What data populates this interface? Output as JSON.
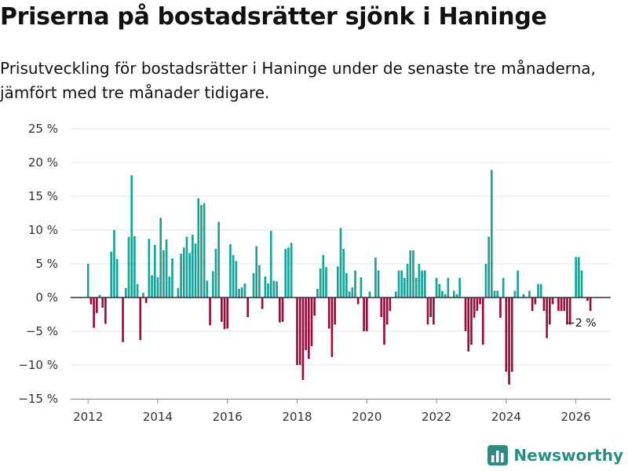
{
  "header": {
    "title": "Priserna på bostadsrätter sjönk i Haninge",
    "subtitle": "Prisutveckling för bostadsrätter i Haninge under de senaste tre månaderna, jämfört med tre månader tidigare."
  },
  "brand": {
    "name": "Newsworthy",
    "icon": "bar-chart-icon"
  },
  "colors": {
    "positive": "#17a398",
    "negative": "#9a0a3c",
    "grid": "#e3e3e3",
    "zero_line": "#333333",
    "brand": "#2a8c82"
  },
  "chart_data": {
    "type": "bar",
    "title": "Priserna på bostadsrätter sjönk i Haninge",
    "xlabel": "",
    "ylabel": "",
    "x_unit": "year",
    "xlim": [
      2011.5,
      2027.0
    ],
    "ylim": [
      -15,
      25
    ],
    "y_ticks": [
      -15,
      -10,
      -5,
      0,
      5,
      10,
      15,
      20,
      25
    ],
    "y_tick_labels": [
      "−15 %",
      "−10 %",
      "−5 %",
      "0 %",
      "5 %",
      "10 %",
      "15 %",
      "20 %",
      "25 %"
    ],
    "x_ticks": [
      2012,
      2014,
      2016,
      2018,
      2020,
      2022,
      2024,
      2026
    ],
    "x_tick_labels": [
      "2012",
      "2014",
      "2016",
      "2018",
      "2020",
      "2022",
      "2024",
      "2026"
    ],
    "grid": true,
    "annotation": {
      "text": "−2 %",
      "x": 2026.17,
      "y": -2
    },
    "series": [
      {
        "name": "Prisutveckling",
        "start_year": 2012,
        "start_month": 1,
        "step_months": 1,
        "values": [
          5,
          -1,
          -4.5,
          -2.3,
          0.4,
          -1.5,
          -3.9,
          0,
          6.8,
          10,
          5.7,
          0,
          -6.6,
          1.4,
          9,
          18.1,
          9.1,
          2,
          -6.3,
          0.7,
          -0.8,
          8.7,
          3.3,
          7.8,
          3,
          11.8,
          7,
          8.6,
          3.1,
          5.8,
          0,
          1.4,
          6.5,
          7.4,
          9,
          6.6,
          9.3,
          8,
          14.7,
          13.7,
          14,
          2.5,
          -4.1,
          3.9,
          7.2,
          11.2,
          -3.6,
          -4.7,
          -4.6,
          7.9,
          6.3,
          5.4,
          1.3,
          1.5,
          2.1,
          -2.9,
          0,
          3.6,
          7.6,
          4.8,
          -1.7,
          3.1,
          2.1,
          9.9,
          2.5,
          2.4,
          -3.7,
          -3.6,
          7.2,
          7.4,
          8.1,
          0,
          -10,
          -10,
          -12.2,
          -7.8,
          -9.1,
          -7.2,
          -2.7,
          1.3,
          4.3,
          6.3,
          4.5,
          -4.6,
          -8.8,
          -4,
          4.6,
          10.3,
          7.2,
          3.6,
          0.9,
          1.5,
          4,
          -1,
          3,
          -5,
          -5,
          0.9,
          0,
          5.9,
          4,
          -2.9,
          -7,
          -4,
          -2,
          0,
          0.9,
          4,
          4,
          2.9,
          5,
          7,
          7,
          2.9,
          5,
          4,
          4,
          -4,
          -2.9,
          -4,
          2.9,
          2,
          1,
          0.5,
          2.9,
          0,
          1,
          0.5,
          2.9,
          0,
          -5,
          -8,
          -7,
          -3,
          -2,
          -1,
          -7,
          5,
          9,
          18.9,
          1,
          1,
          -3,
          2.9,
          -11,
          -12.9,
          -11,
          1,
          4,
          0,
          0.5,
          0,
          1,
          -2,
          -1,
          2,
          2,
          -2,
          -6,
          -4,
          -1,
          0,
          -2,
          -2,
          -2,
          -4,
          -4,
          0,
          6,
          6,
          4,
          0,
          -0.5,
          -2
        ]
      }
    ]
  }
}
